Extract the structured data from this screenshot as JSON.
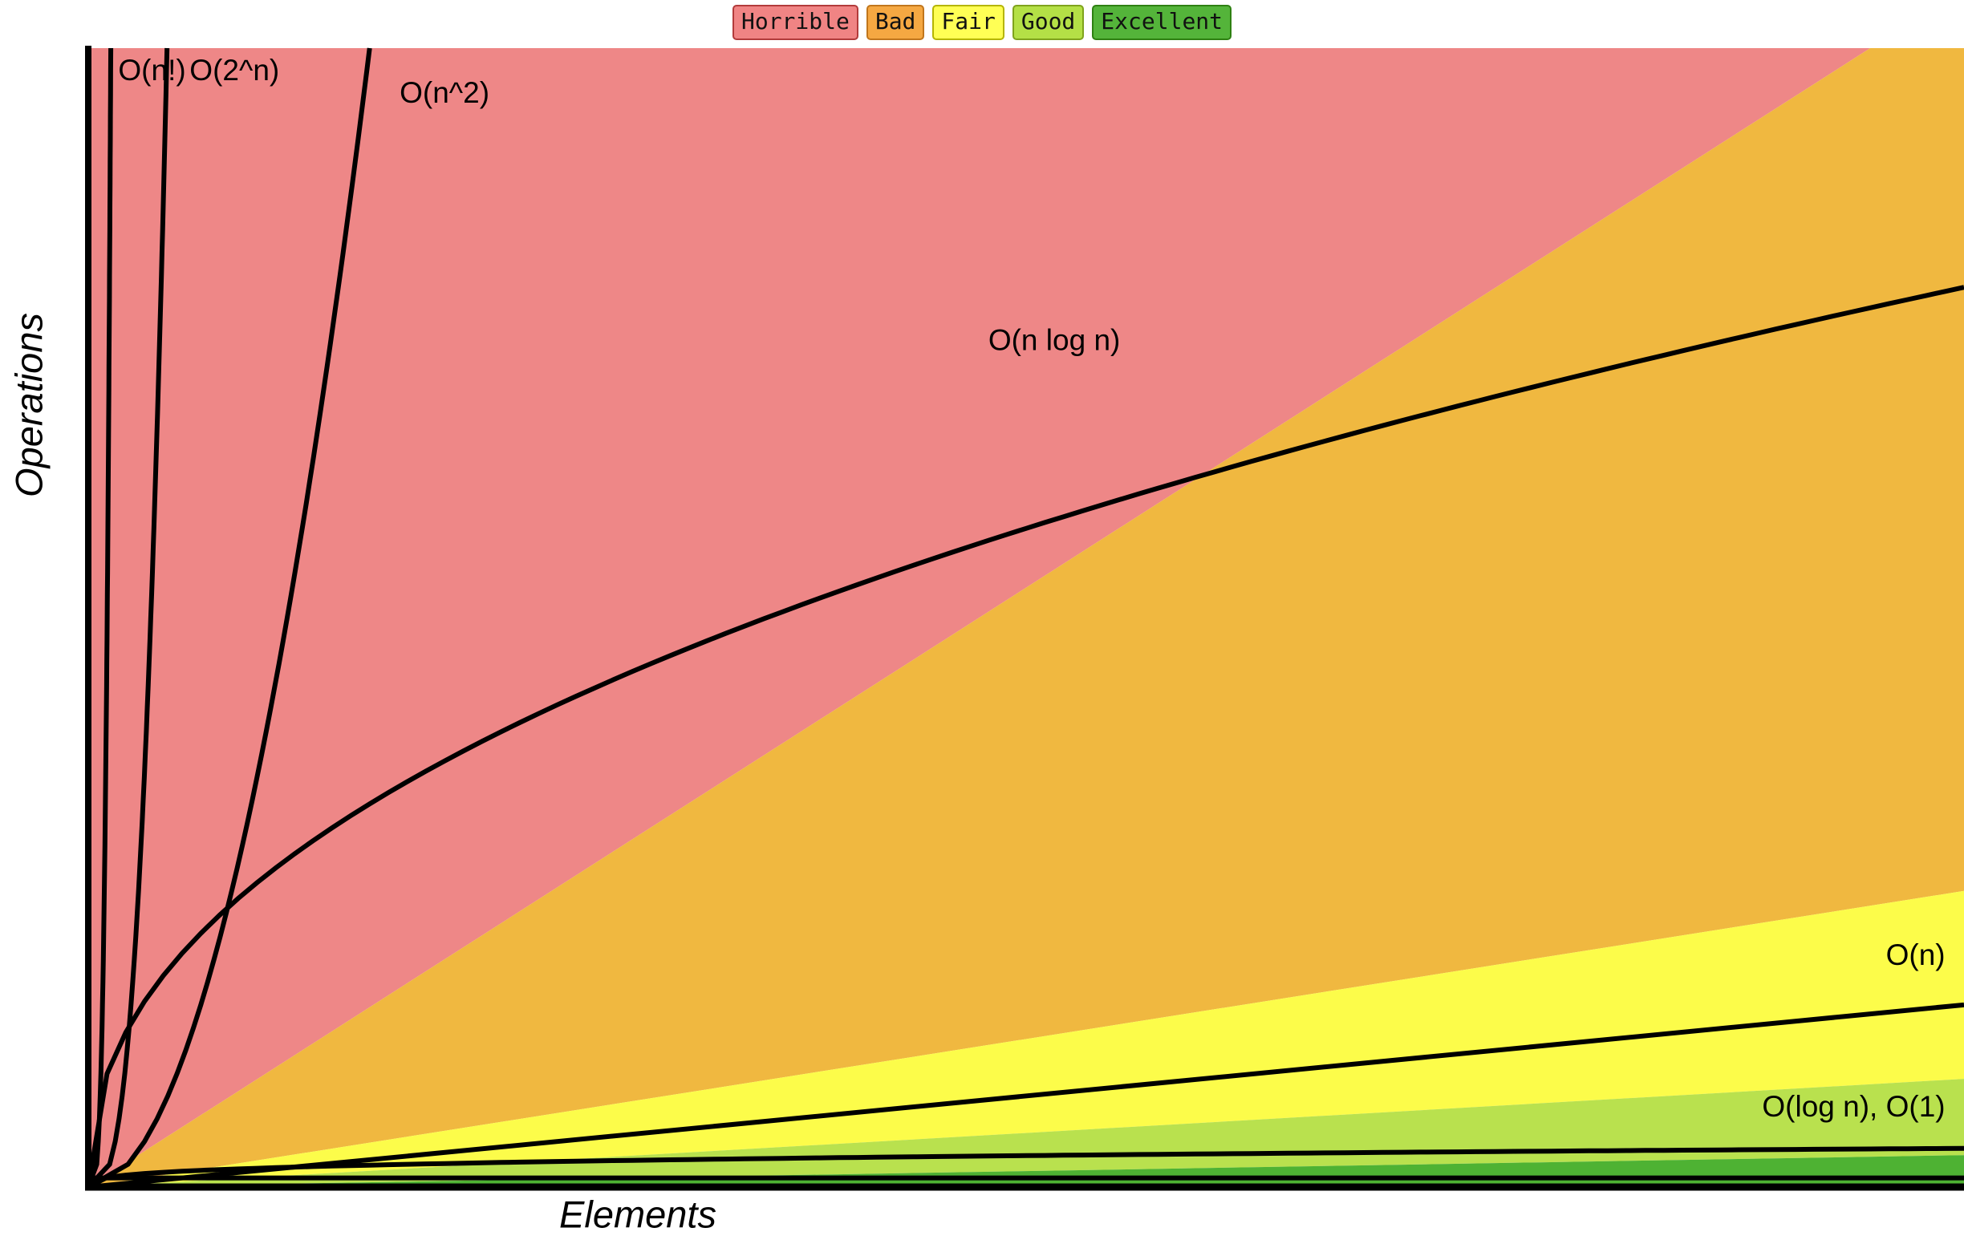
{
  "legend": {
    "items": [
      {
        "label": "Horrible",
        "fill": "#f08484",
        "border": "#b23b3b"
      },
      {
        "label": "Bad",
        "fill": "#f5a842",
        "border": "#c1761c"
      },
      {
        "label": "Fair",
        "fill": "#ffff55",
        "border": "#b5b500"
      },
      {
        "label": "Good",
        "fill": "#b4e046",
        "border": "#7fa31c"
      },
      {
        "label": "Excellent",
        "fill": "#54b43a",
        "border": "#2e8012"
      }
    ]
  },
  "chart_data": {
    "type": "area",
    "title": "",
    "xlabel": "Elements",
    "ylabel": "Operations",
    "x_range": [
      0,
      100
    ],
    "y_range": [
      0,
      100
    ],
    "grid": false,
    "legend_position": "top-center",
    "regions": [
      {
        "name": "Horrible",
        "color": "#ee8787",
        "polygon": [
          [
            0,
            0
          ],
          [
            95,
            100
          ],
          [
            0,
            100
          ]
        ]
      },
      {
        "name": "Bad",
        "color": "#f0b840",
        "polygon": [
          [
            0,
            0
          ],
          [
            100,
            26
          ],
          [
            100,
            100
          ],
          [
            95,
            100
          ]
        ]
      },
      {
        "name": "Fair",
        "color": "#fcfc4a",
        "polygon": [
          [
            0,
            0
          ],
          [
            100,
            9.5
          ],
          [
            100,
            26
          ]
        ]
      },
      {
        "name": "Good",
        "color": "#b9e14e",
        "polygon": [
          [
            0,
            0
          ],
          [
            100,
            2.8
          ],
          [
            100,
            9.5
          ]
        ]
      },
      {
        "name": "Excellent",
        "color": "#4eb233",
        "polygon": [
          [
            0,
            0
          ],
          [
            100,
            0
          ],
          [
            100,
            2.8
          ]
        ]
      }
    ],
    "curves": [
      {
        "name": "O(n!)",
        "shape": "hockey",
        "x_top": 1.2,
        "k": 4
      },
      {
        "name": "O(2^n)",
        "shape": "hockey",
        "x_top": 4.2,
        "k": 3
      },
      {
        "name": "O(n^2)",
        "shape": "hockey",
        "x_top": 15,
        "k": 2
      },
      {
        "name": "O(n log n)",
        "shape": "concave",
        "y_end": 79,
        "k": 0.45
      },
      {
        "name": "O(n)",
        "shape": "linear",
        "y_end": 16
      },
      {
        "name": "O(log n)",
        "shape": "concave",
        "y_end": 3.4,
        "k": 0.3
      },
      {
        "name": "O(1)",
        "shape": "flat",
        "y": 0.8
      }
    ],
    "curve_labels": [
      {
        "text": "O(n!)",
        "x": 1.6,
        "y": 97.2,
        "anchor": "start"
      },
      {
        "text": "O(2^n)",
        "x": 5.4,
        "y": 97.2,
        "anchor": "start"
      },
      {
        "text": "O(n^2)",
        "x": 16.6,
        "y": 95.2,
        "anchor": "start"
      },
      {
        "text": "O(n log n)",
        "x": 51.5,
        "y": 73.5,
        "anchor": "middle"
      },
      {
        "text": "O(n)",
        "x": 99,
        "y": 19.5,
        "anchor": "end"
      },
      {
        "text": "O(log n), O(1)",
        "x": 99,
        "y": 6.2,
        "anchor": "end"
      }
    ]
  }
}
